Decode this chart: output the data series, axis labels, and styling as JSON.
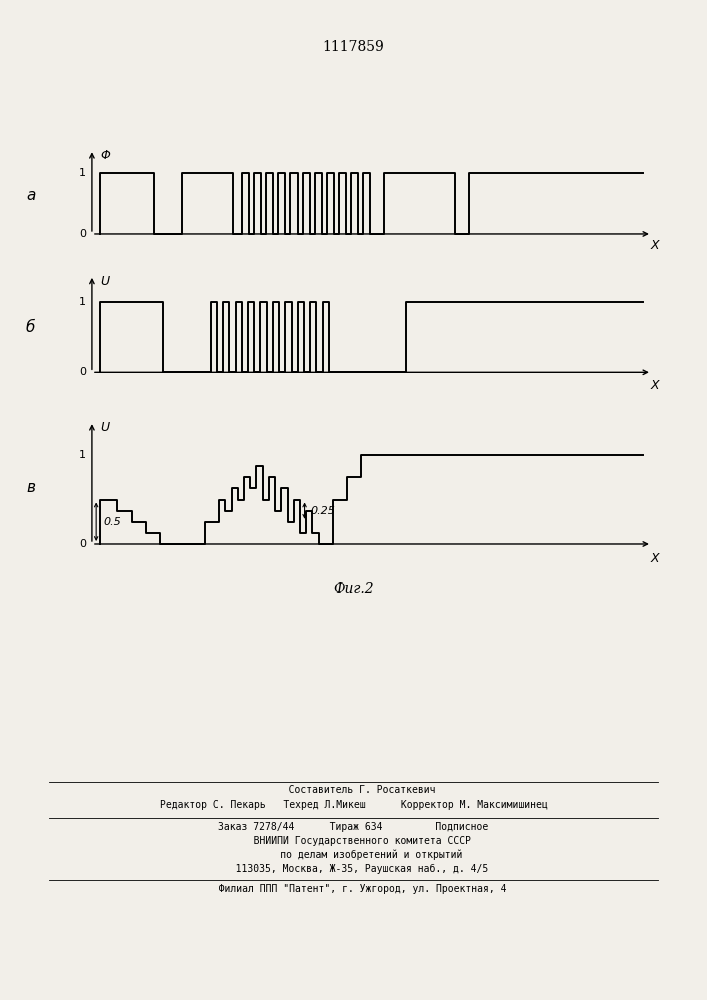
{
  "title": "1117859",
  "fig_label": "Фиг.2",
  "background_color": "#f2efe9",
  "panel_a_label": "а",
  "panel_b_label": "б",
  "panel_c_label": "в",
  "panel_a_ylabel": "Φ",
  "panel_b_ylabel": "U",
  "panel_c_ylabel": "U",
  "xlabel": "X",
  "annotation_05": "0.5",
  "annotation_025": "0.25",
  "footer_line1": "   Составитель Г. Росаткевич",
  "footer_line2": "Редактор С. Пекарь   Техред Л.Микеш      Корректор М. Максимишинец",
  "footer_line3": "Заказ 7278/44      Тираж 634         Подписное",
  "footer_line4": "   ВНИИПИ Государственного комитета СССР",
  "footer_line5": "      по делам изобретений и открытий",
  "footer_line6": "   113035, Москва, Ж-35, Раушская наб., д. 4/5",
  "footer_line7": "   Филиал ППП \"Патент\", г. Ужгород, ул. Проектная, 4"
}
